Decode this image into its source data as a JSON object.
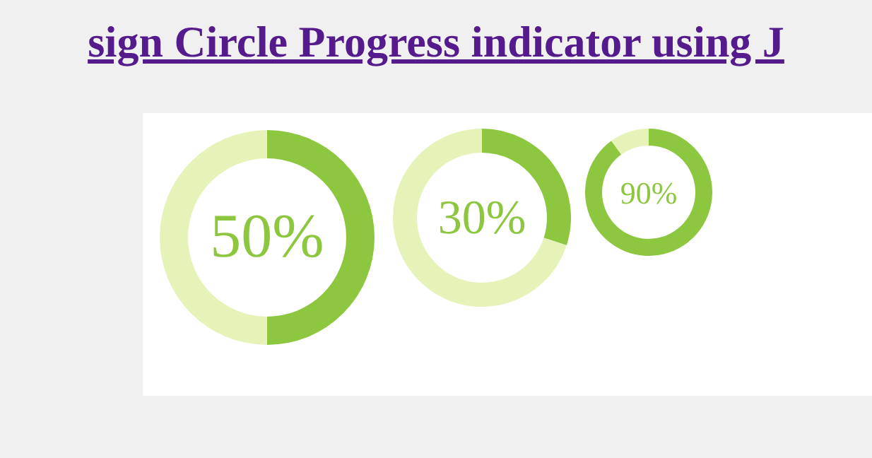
{
  "chart_data": [
    {
      "type": "donut",
      "title": "sign Circle Progress indicator using J",
      "categories": [
        null,
        null
      ],
      "values": [
        50,
        50
      ],
      "colors": [
        "#8dc63f",
        "#e5f3b9"
      ],
      "annotations": [
        "50%"
      ]
    },
    {
      "type": "donut",
      "categories": [
        null,
        null
      ],
      "values": [
        30,
        70
      ],
      "colors": [
        "#8dc63f",
        "#e5f3b9"
      ],
      "annotations": [
        "30%"
      ]
    },
    {
      "type": "donut",
      "categories": [
        null,
        null
      ],
      "values": [
        90,
        10
      ],
      "colors": [
        "#8dc63f",
        "#e5f3b9"
      ],
      "annotations": [
        "90%"
      ]
    }
  ]
}
